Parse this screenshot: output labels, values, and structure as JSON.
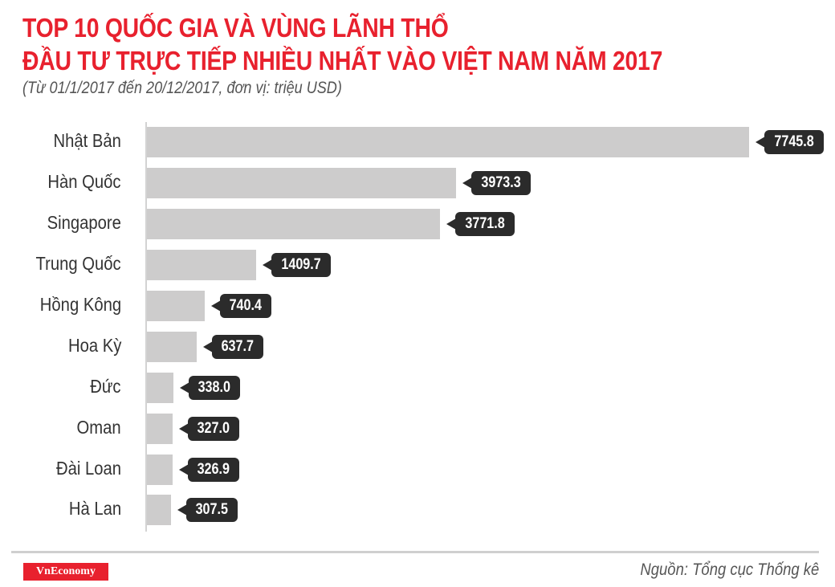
{
  "header": {
    "title_line1": "TOP 10 QUỐC GIA VÀ VÙNG LÃNH THỔ",
    "title_line2": "ĐẦU TƯ TRỰC TIẾP NHIỀU NHẤT VÀO VIỆT NAM NĂM 2017",
    "subtitle": "(Từ 01/1/2017 đến 20/12/2017, đơn vị: triệu USD)"
  },
  "footer": {
    "brand": "VnEconomy",
    "source": "Nguồn: Tổng cục Thống kê"
  },
  "colors": {
    "title": "#e8212e",
    "bar": "#cdcccc",
    "tag": "#2b2b2b",
    "brand": "#e8212e"
  },
  "rows": [
    {
      "label": "Nhật Bản",
      "value": "7745.8"
    },
    {
      "label": "Hàn Quốc",
      "value": "3973.3"
    },
    {
      "label": "Singapore",
      "value": "3771.8"
    },
    {
      "label": "Trung Quốc",
      "value": "1409.7"
    },
    {
      "label": "Hồng Kông",
      "value": "740.4"
    },
    {
      "label": "Hoa Kỳ",
      "value": "637.7"
    },
    {
      "label": "Đức",
      "value": "338.0"
    },
    {
      "label": "Oman",
      "value": "327.0"
    },
    {
      "label": "Đài Loan",
      "value": "326.9"
    },
    {
      "label": "Hà Lan",
      "value": "307.5"
    }
  ],
  "chart_data": {
    "type": "bar",
    "orientation": "horizontal",
    "title": "TOP 10 QUỐC GIA VÀ VÙNG LÃNH THỔ ĐẦU TƯ TRỰC TIẾP NHIỀU NHẤT VÀO VIỆT NAM NĂM 2017",
    "subtitle": "(Từ 01/1/2017 đến 20/12/2017, đơn vị: triệu USD)",
    "categories": [
      "Nhật Bản",
      "Hàn Quốc",
      "Singapore",
      "Trung Quốc",
      "Hồng Kông",
      "Hoa Kỳ",
      "Đức",
      "Oman",
      "Đài Loan",
      "Hà Lan"
    ],
    "values": [
      7745.8,
      3973.3,
      3771.8,
      1409.7,
      740.4,
      637.7,
      338.0,
      327.0,
      326.9,
      307.5
    ],
    "xlabel": "",
    "ylabel": "",
    "unit": "triệu USD",
    "grid": false,
    "legend": null,
    "data_labels": true,
    "source": "Nguồn: Tổng cục Thống kê"
  }
}
